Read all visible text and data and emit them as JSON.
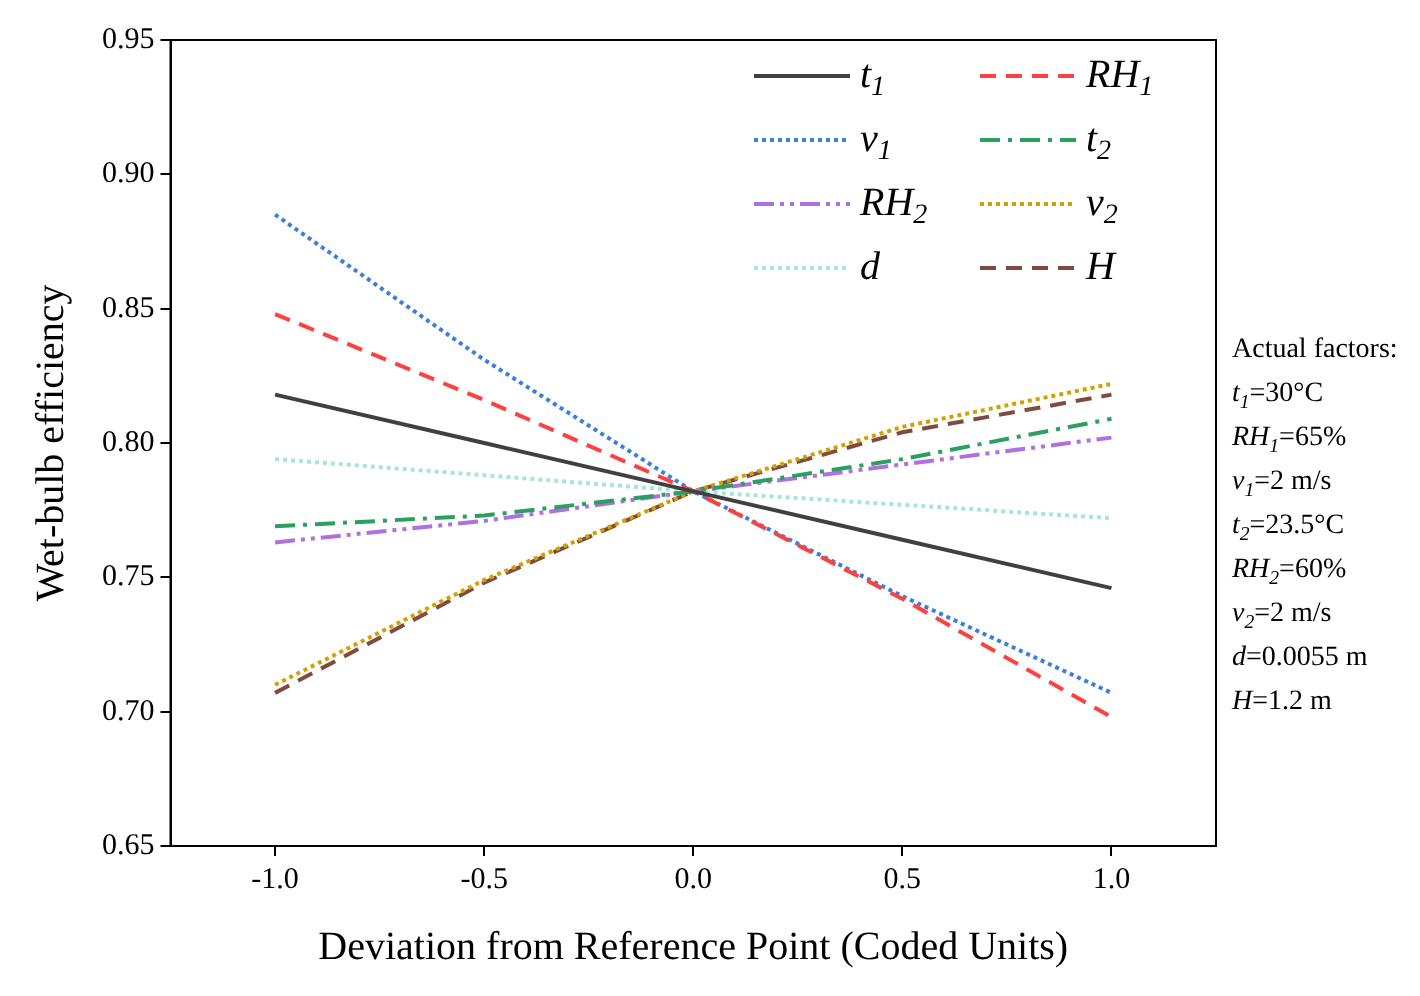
{
  "chart_data": {
    "type": "line",
    "xlabel": "Deviation from Reference Point (Coded Units)",
    "ylabel": "Wet-bulb efficiency",
    "x": [
      -1.0,
      -0.5,
      0.0,
      0.5,
      1.0
    ],
    "xlim": [
      -1.25,
      1.25
    ],
    "xticks": [
      {
        "value": -1.0,
        "label": "-1.0"
      },
      {
        "value": -0.5,
        "label": "-0.5"
      },
      {
        "value": 0.0,
        "label": "0.0"
      },
      {
        "value": 0.5,
        "label": "0.5"
      },
      {
        "value": 1.0,
        "label": "1.0"
      }
    ],
    "ylim": [
      0.65,
      0.95
    ],
    "yticks": [
      {
        "value": 0.65,
        "label": "0.65"
      },
      {
        "value": 0.7,
        "label": "0.70"
      },
      {
        "value": 0.75,
        "label": "0.75"
      },
      {
        "value": 0.8,
        "label": "0.80"
      },
      {
        "value": 0.85,
        "label": "0.85"
      },
      {
        "value": 0.9,
        "label": "0.90"
      },
      {
        "value": 0.95,
        "label": "0.95"
      }
    ],
    "grid": false,
    "legend": "top right",
    "marker": "none",
    "series": [
      {
        "name": "t$_{1}$",
        "color": "#404040",
        "line_style": "solid",
        "values": [
          0.818,
          0.8,
          0.782,
          0.764,
          0.746
        ]
      },
      {
        "name": "RH$_{1}$",
        "color": "#ff4040",
        "line_style": "dashed",
        "values": [
          0.848,
          0.816,
          0.782,
          0.742,
          0.698
        ]
      },
      {
        "name": "v$_{1}$",
        "color": "#3a7fe0",
        "line_style": "dotted",
        "values": [
          0.885,
          0.831,
          0.782,
          0.743,
          0.707
        ]
      },
      {
        "name": "t$_{2}$",
        "color": "#2aa060",
        "line_style": "dashdot",
        "values": [
          0.769,
          0.773,
          0.782,
          0.794,
          0.809
        ]
      },
      {
        "name": "RH$_{2}$",
        "color": "#b070e0",
        "line_style": "dashdotdot",
        "values": [
          0.763,
          0.771,
          0.782,
          0.792,
          0.802
        ]
      },
      {
        "name": "v$_{2}$",
        "color": "#d4a000",
        "line_style": "dotted",
        "values": [
          0.71,
          0.749,
          0.782,
          0.806,
          0.822
        ]
      },
      {
        "name": "d",
        "color": "#a8e4dc",
        "line_style": "dotted",
        "values": [
          0.794,
          0.788,
          0.782,
          0.777,
          0.772
        ]
      },
      {
        "name": "H",
        "color": "#804a40",
        "line_style": "dashed",
        "values": [
          0.707,
          0.748,
          0.782,
          0.804,
          0.818
        ]
      }
    ],
    "annotations": [
      "Actual factors:",
      "t$_{1}$=30°C",
      "RH$_{1}$=65%",
      "v$_{1}$=2 m/s",
      "t$_{2}$=23.5°C",
      "RH$_{2}$=60%",
      "v$_{2}$=2 m/s",
      "d=0.0055 m",
      "H=1.2 m"
    ]
  }
}
